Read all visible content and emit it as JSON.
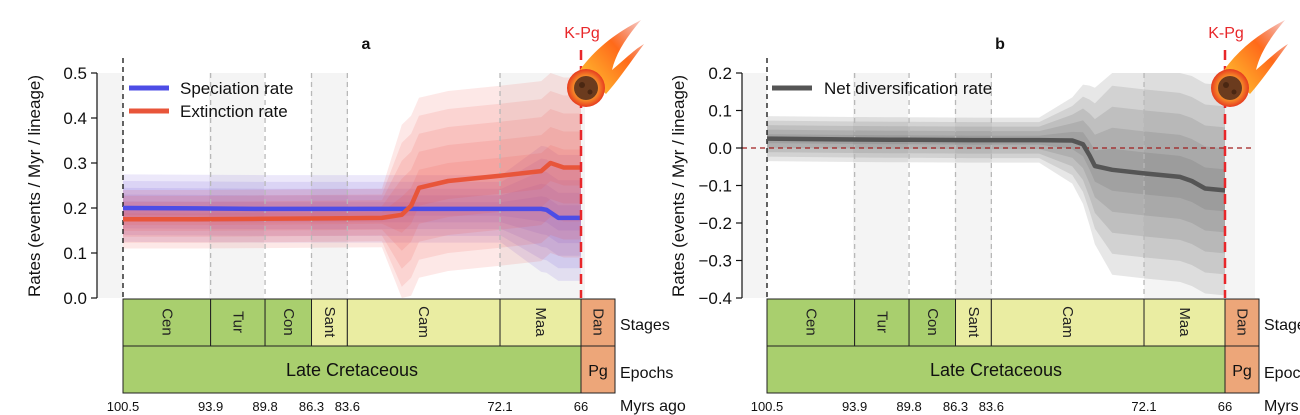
{
  "chart_data": [
    {
      "panel_label": "a",
      "type": "line",
      "kpg_label": "K-Pg",
      "ylabel": "Rates (events / Myr / lineage)",
      "ylim": [
        0,
        0.5
      ],
      "yticks": [
        "0.0",
        "0.1",
        "0.2",
        "0.3",
        "0.4",
        "0.5"
      ],
      "xlim": [
        100.5,
        66
      ],
      "x_reversed": true,
      "grid": "dashed vertical lines at stage boundaries",
      "legend_position": "top-left",
      "series": [
        {
          "name": "Speciation rate",
          "color": "#4d4de6",
          "x": [
            100.5,
            95,
            90,
            85,
            80,
            76,
            72,
            69,
            68.6,
            67.7,
            66
          ],
          "y": [
            0.2,
            0.199,
            0.198,
            0.198,
            0.198,
            0.198,
            0.198,
            0.198,
            0.196,
            0.178,
            0.178
          ]
        },
        {
          "name": "Extinction rate",
          "color": "#e8553a",
          "x": [
            100.5,
            95,
            90,
            85,
            81,
            79.5,
            78.8,
            78.2,
            76,
            72,
            69,
            68.3,
            67.3,
            66.5,
            66
          ],
          "y": [
            0.175,
            0.175,
            0.176,
            0.177,
            0.178,
            0.185,
            0.205,
            0.245,
            0.26,
            0.272,
            0.282,
            0.3,
            0.29,
            0.29,
            0.29
          ]
        }
      ]
    },
    {
      "panel_label": "b",
      "type": "line",
      "kpg_label": "K-Pg",
      "ylabel": "Rates (events / Myr / lineage)",
      "ylim": [
        -0.4,
        0.2
      ],
      "yticks": [
        "−0.4",
        "−0.3",
        "−0.2",
        "−0.1",
        "0.0",
        "0.1",
        "0.2"
      ],
      "xlim": [
        100.5,
        66
      ],
      "x_reversed": true,
      "reference_line": 0,
      "legend_position": "top-left",
      "series": [
        {
          "name": "Net diversification rate",
          "color": "#555555",
          "x": [
            100.5,
            95,
            90,
            85,
            80,
            77.5,
            76.7,
            76.2,
            75.8,
            74.5,
            72,
            69.4,
            68.5,
            67.5,
            66
          ],
          "y": [
            0.025,
            0.023,
            0.022,
            0.021,
            0.021,
            0.02,
            0.01,
            -0.02,
            -0.048,
            -0.058,
            -0.068,
            -0.077,
            -0.088,
            -0.108,
            -0.113
          ]
        }
      ]
    }
  ],
  "timescale": {
    "stages_label": "Stages",
    "epochs_label": "Epochs",
    "ages_label": "Myrs ago",
    "stage_colors": {
      "Cretaceous_dark": "#a9cf6e",
      "Cretaceous_light": "#eaeda2",
      "Paleogene": "#eda679"
    },
    "stages": [
      {
        "name": "Cen",
        "start": 100.5,
        "end": 93.9,
        "tone": "Cretaceous_dark"
      },
      {
        "name": "Tur",
        "start": 93.9,
        "end": 89.8,
        "tone": "Cretaceous_dark"
      },
      {
        "name": "Con",
        "start": 89.8,
        "end": 86.3,
        "tone": "Cretaceous_dark"
      },
      {
        "name": "Sant",
        "start": 86.3,
        "end": 83.6,
        "tone": "Cretaceous_light"
      },
      {
        "name": "Cam",
        "start": 83.6,
        "end": 72.1,
        "tone": "Cretaceous_light"
      },
      {
        "name": "Maa",
        "start": 72.1,
        "end": 66,
        "tone": "Cretaceous_light"
      },
      {
        "name": "Dan",
        "start": 66,
        "end": 64,
        "tone": "Paleogene"
      }
    ],
    "epochs": [
      {
        "name": "Late Cretaceous",
        "start": 100.5,
        "end": 66,
        "tone": "Cretaceous_dark"
      },
      {
        "name": "Pg",
        "start": 66,
        "end": 64,
        "tone": "Paleogene"
      }
    ],
    "ages": [
      "100.5",
      "93.9",
      "89.8",
      "86.3",
      "83.6",
      "72.1",
      "66"
    ]
  }
}
